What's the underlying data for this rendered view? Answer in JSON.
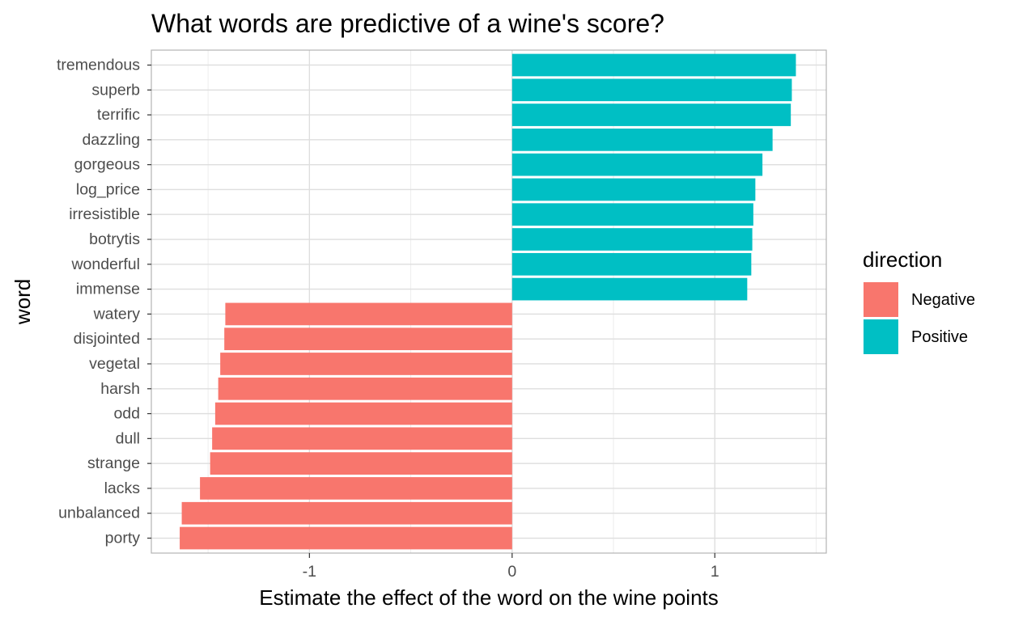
{
  "chart_data": {
    "type": "bar",
    "orientation": "horizontal",
    "title": "What words are predictive of a wine's score?",
    "xlabel": "Estimate the effect of the word on the wine points",
    "ylabel": "word",
    "xlim": [
      -1.78,
      1.55
    ],
    "xticks": [
      -1,
      0,
      1
    ],
    "xtick_labels": [
      "-1",
      "0",
      "1"
    ],
    "grid": true,
    "legend_position": "right",
    "legend_title": "direction",
    "colors": {
      "Negative": "#F8766D",
      "Positive": "#00BFC4"
    },
    "categories": [
      "tremendous",
      "superb",
      "terrific",
      "dazzling",
      "gorgeous",
      "log_price",
      "irresistible",
      "botrytis",
      "wonderful",
      "immense",
      "watery",
      "disjointed",
      "vegetal",
      "harsh",
      "odd",
      "dull",
      "strange",
      "lacks",
      "unbalanced",
      "porty"
    ],
    "values": [
      1.4,
      1.38,
      1.375,
      1.285,
      1.235,
      1.2,
      1.19,
      1.185,
      1.18,
      1.16,
      -1.415,
      -1.42,
      -1.44,
      -1.45,
      -1.465,
      -1.48,
      -1.49,
      -1.54,
      -1.63,
      -1.64
    ],
    "direction": [
      "Positive",
      "Positive",
      "Positive",
      "Positive",
      "Positive",
      "Positive",
      "Positive",
      "Positive",
      "Positive",
      "Positive",
      "Negative",
      "Negative",
      "Negative",
      "Negative",
      "Negative",
      "Negative",
      "Negative",
      "Negative",
      "Negative",
      "Negative"
    ],
    "legend": [
      {
        "label": "Negative",
        "color": "#F8766D"
      },
      {
        "label": "Positive",
        "color": "#00BFC4"
      }
    ]
  }
}
